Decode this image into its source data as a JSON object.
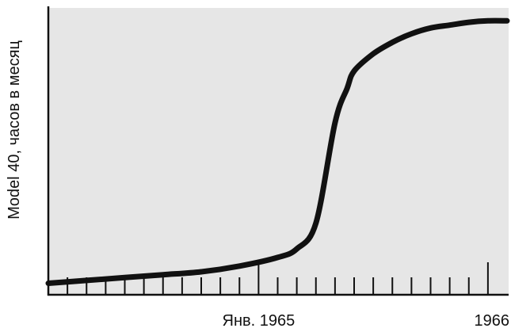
{
  "chart_data": {
    "type": "line",
    "title": "",
    "xlabel": "",
    "ylabel": "Model 40, часов в месяц",
    "x_tick_labels": [
      {
        "label": "Янв. 1965",
        "x": "1965-01"
      },
      {
        "label": "1966",
        "x": "1966-01"
      }
    ],
    "x_minor_ticks": [
      "1964-03",
      "1964-04",
      "1964-05",
      "1964-06",
      "1964-07",
      "1964-08",
      "1964-09",
      "1964-10",
      "1964-11",
      "1964-12",
      "1965-01",
      "1965-02",
      "1965-03",
      "1965-04",
      "1965-05",
      "1965-06",
      "1965-07",
      "1965-08",
      "1965-09",
      "1965-10",
      "1965-11",
      "1965-12",
      "1966-01"
    ],
    "x_major_ticks": [
      "1965-01",
      "1966-01"
    ],
    "xlim": [
      "1964-02",
      "1966-02"
    ],
    "y_unit_note": "no numeric y tick labels printed",
    "series": [
      {
        "color": "#111111",
        "points": [
          {
            "x": "1964-02",
            "y": 4
          },
          {
            "x": "1964-04",
            "y": 5
          },
          {
            "x": "1964-06",
            "y": 6
          },
          {
            "x": "1964-08",
            "y": 7
          },
          {
            "x": "1964-10",
            "y": 8
          },
          {
            "x": "1964-12",
            "y": 10
          },
          {
            "x": "1965-02",
            "y": 13
          },
          {
            "x": "1965-03",
            "y": 16
          },
          {
            "x": "1965-04",
            "y": 25
          },
          {
            "x": "1965-05",
            "y": 60
          },
          {
            "x": "1965-05-20",
            "y": 72
          },
          {
            "x": "1965-06",
            "y": 78
          },
          {
            "x": "1965-07",
            "y": 84
          },
          {
            "x": "1965-08",
            "y": 88
          },
          {
            "x": "1965-09",
            "y": 91
          },
          {
            "x": "1965-10",
            "y": 93
          },
          {
            "x": "1965-11",
            "y": 94
          },
          {
            "x": "1965-12",
            "y": 95
          },
          {
            "x": "1966-01",
            "y": 95.5
          },
          {
            "x": "1966-02",
            "y": 95.5
          }
        ]
      }
    ],
    "grid": false,
    "background": "#e6e6e6"
  }
}
